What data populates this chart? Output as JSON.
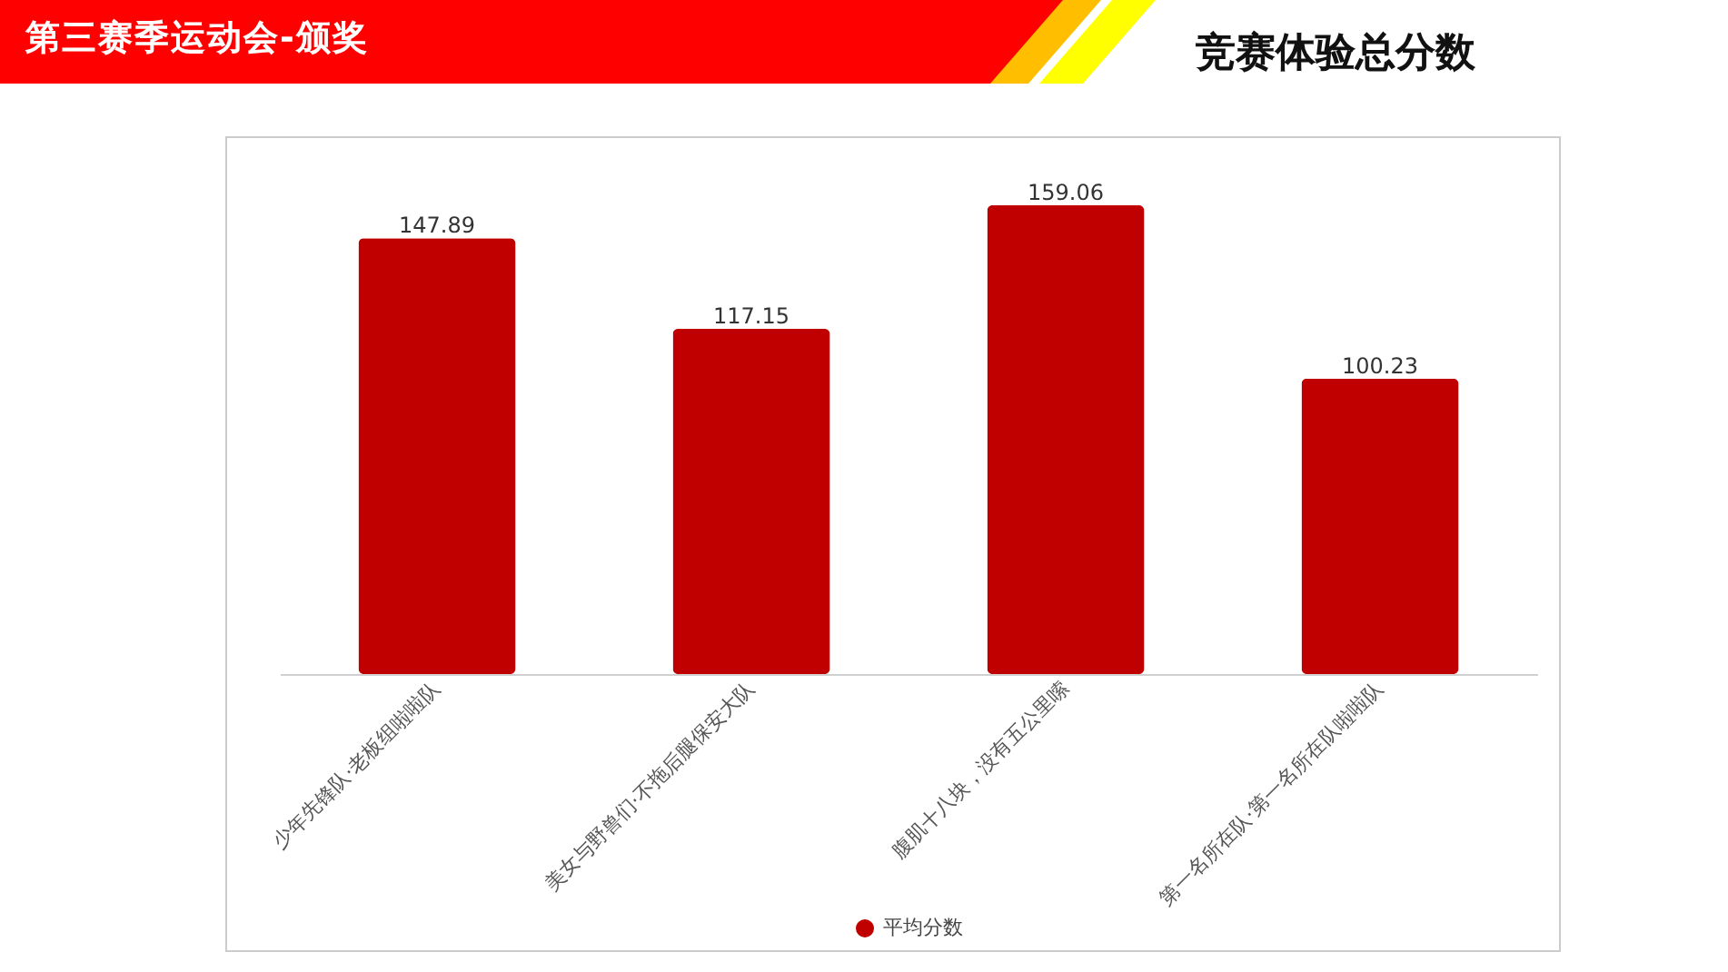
{
  "chart_data": {
    "type": "bar",
    "title": "竞赛体验总分数",
    "subtitle": "第三赛季运动会-颁奖",
    "categories": [
      "少年先锋队·老板组啦啦队",
      "美女与野兽们·不拖后腿保安大队",
      "腹肌十八块，没有五公里嗦",
      "第一名所在队·第一名所在队啦啦队"
    ],
    "series": [
      {
        "name": "平均分数",
        "color": "#c00000",
        "values": [
          147.89,
          117.15,
          159.06,
          100.23
        ]
      }
    ],
    "data_labels": true,
    "grid": false,
    "legend": "bottom"
  }
}
